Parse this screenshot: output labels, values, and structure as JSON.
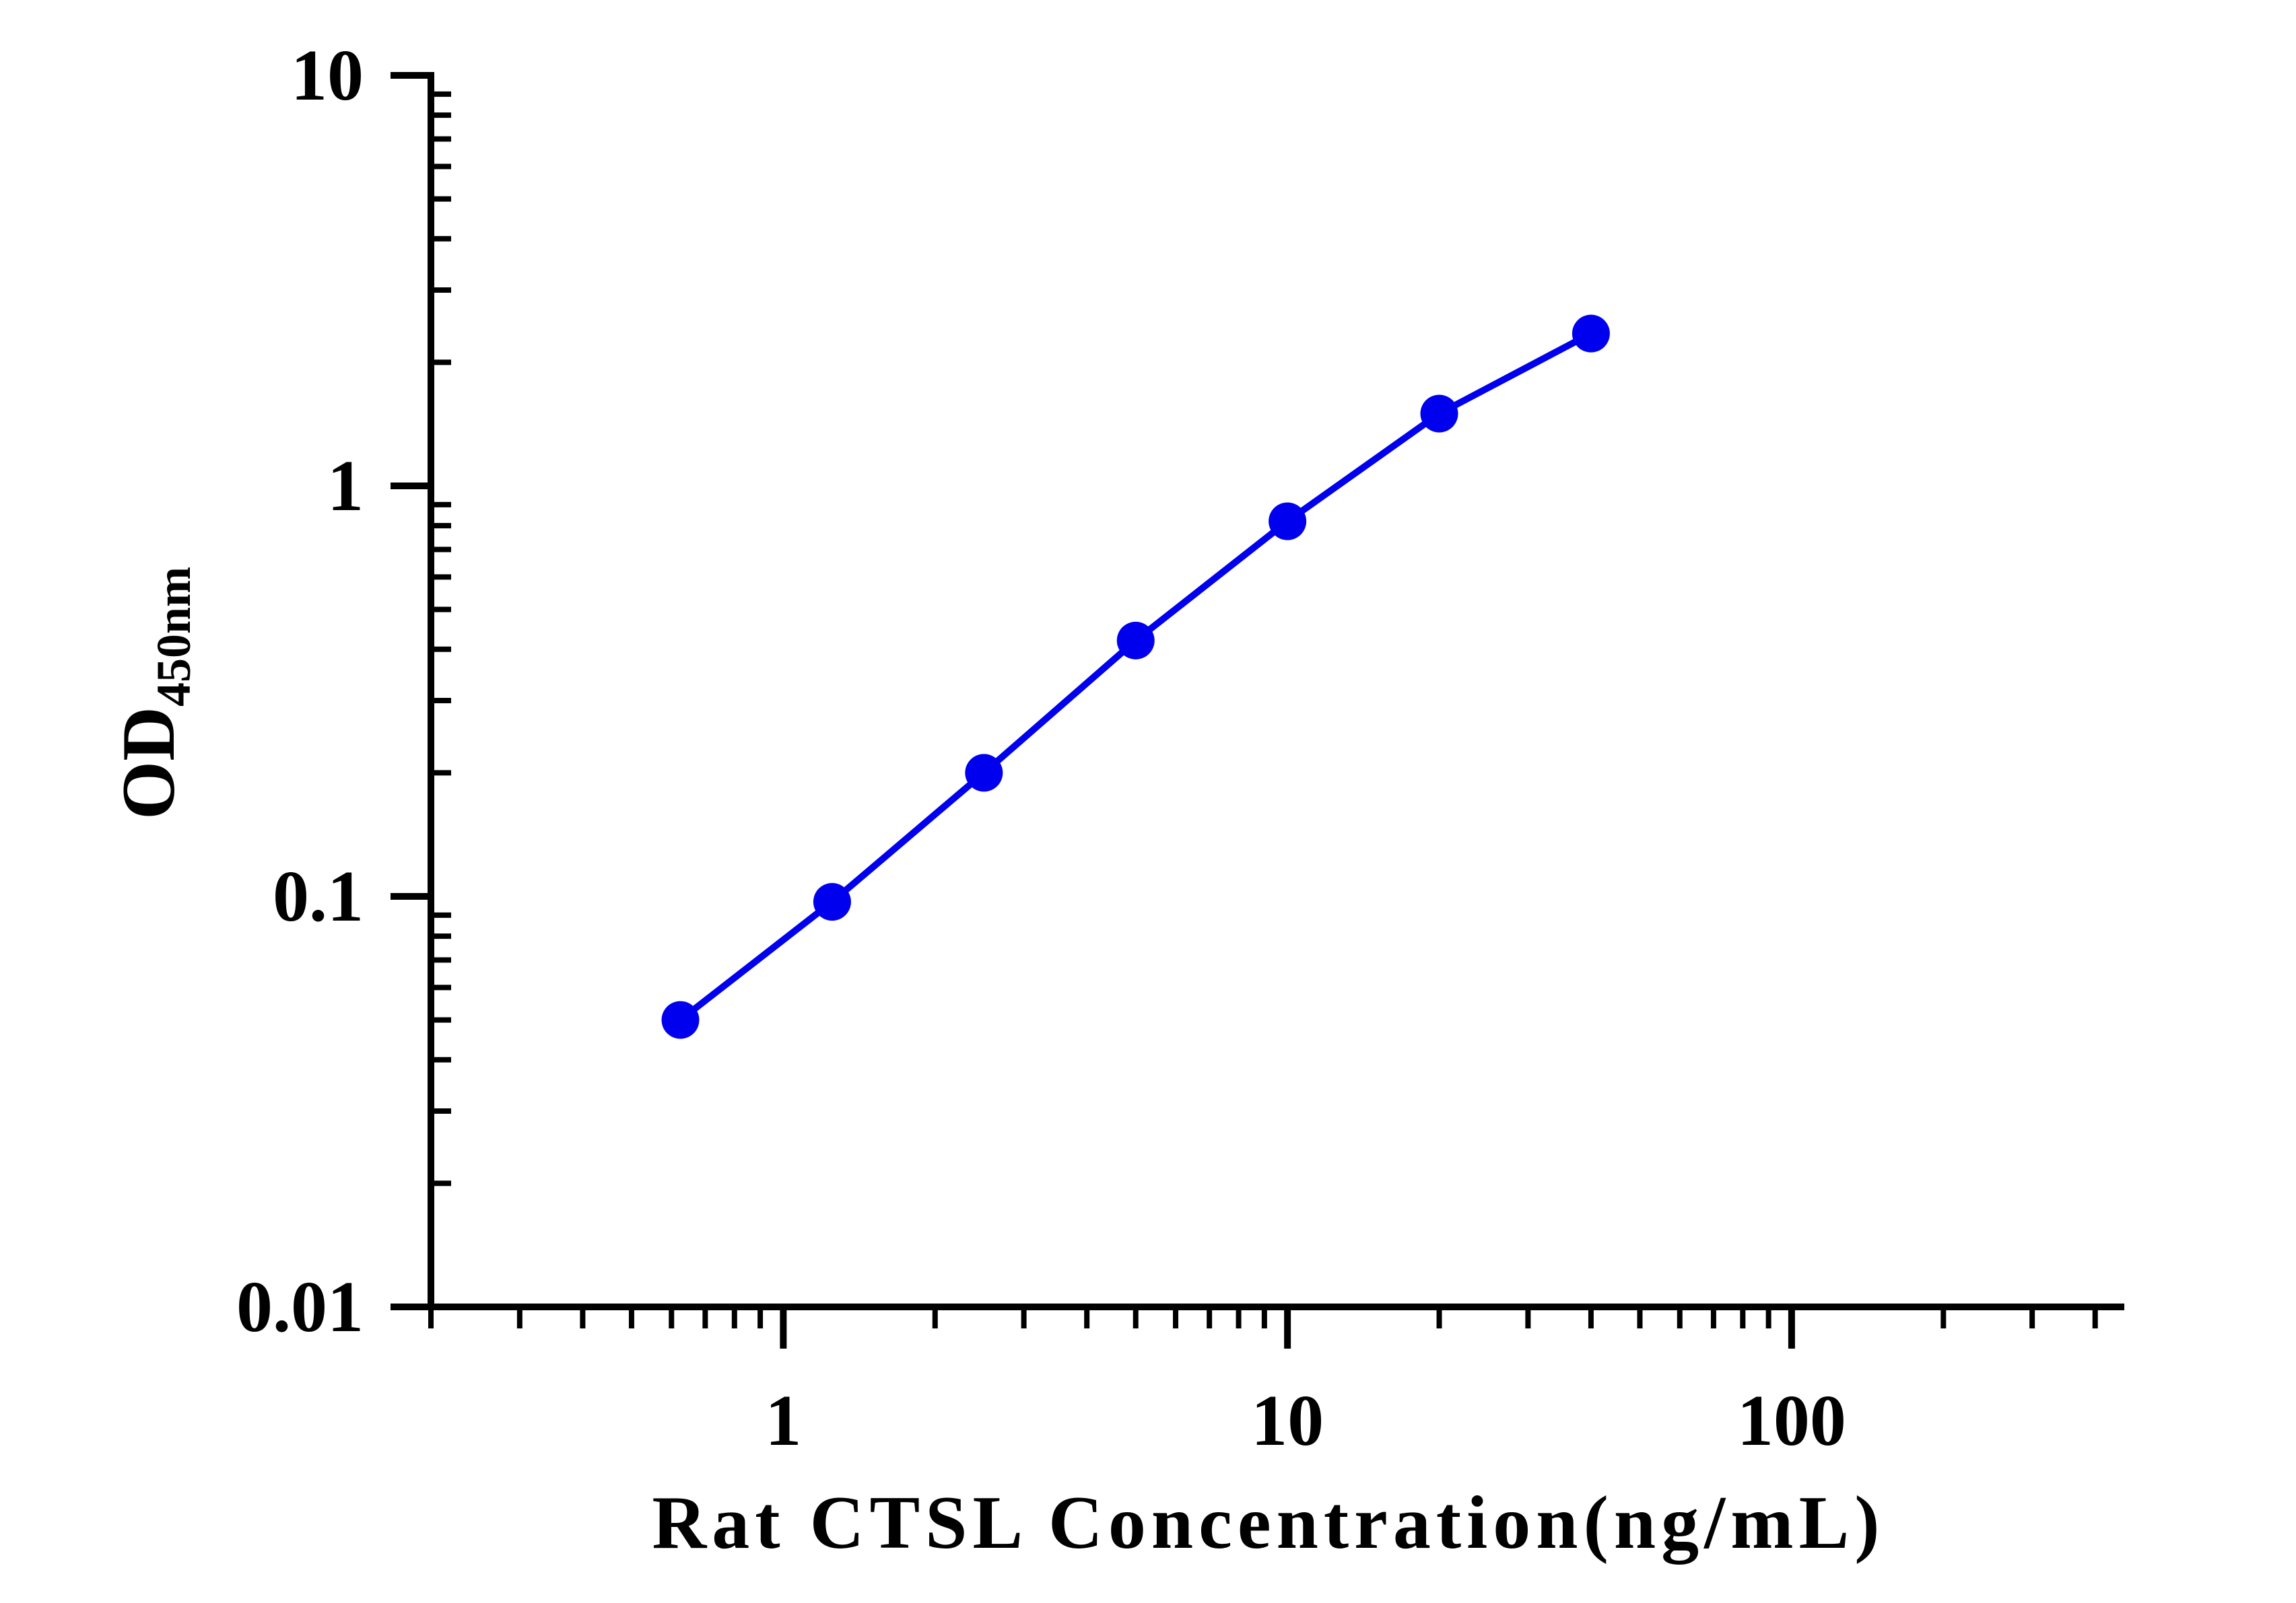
{
  "chart_data": {
    "type": "line",
    "title": "",
    "xlabel": "Rat CTSL Concentration(ng/mL)",
    "ylabel_main": "OD",
    "ylabel_sub": "450nm",
    "xscale": "log",
    "yscale": "log",
    "xlim": [
      0.2,
      450
    ],
    "ylim": [
      0.01,
      10
    ],
    "xticks": [
      {
        "value": 1,
        "label": "1"
      },
      {
        "value": 10,
        "label": "10"
      },
      {
        "value": 100,
        "label": "100"
      }
    ],
    "yticks": [
      {
        "value": 0.01,
        "label": "0.01"
      },
      {
        "value": 0.1,
        "label": "0.1"
      },
      {
        "value": 1,
        "label": "1"
      },
      {
        "value": 10,
        "label": "10"
      }
    ],
    "grid": false,
    "legend": "none",
    "series": [
      {
        "color": "#0000ee",
        "x": [
          0.625,
          1.25,
          2.5,
          5,
          10,
          20,
          40
        ],
        "y": [
          0.05,
          0.097,
          0.2,
          0.42,
          0.82,
          1.5,
          2.35
        ]
      }
    ]
  }
}
